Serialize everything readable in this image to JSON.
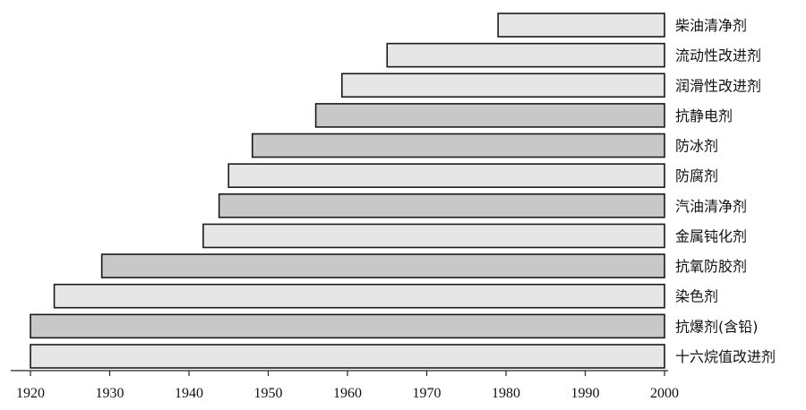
{
  "chart_data": {
    "type": "bar",
    "orientation": "horizontal",
    "title": "",
    "xlabel": "",
    "ylabel": "",
    "xlim": [
      1920,
      2000
    ],
    "xticks": [
      1920,
      1930,
      1940,
      1950,
      1960,
      1970,
      1980,
      1990,
      2000
    ],
    "grid": false,
    "legend": "none",
    "colors": {
      "dark": "#c8c8c8",
      "light": "#e6e6e6",
      "edge": "#1a1a1a"
    },
    "bars": [
      {
        "label": "柴油清净剂",
        "start": 1979,
        "end": 2000,
        "shade": "light"
      },
      {
        "label": "流动性改进剂",
        "start": 1965,
        "end": 2000,
        "shade": "light"
      },
      {
        "label": "润滑性改进剂",
        "start": 1959.3,
        "end": 2000,
        "shade": "light"
      },
      {
        "label": "抗静电剂",
        "start": 1956,
        "end": 2000,
        "shade": "dark"
      },
      {
        "label": "防冰剂",
        "start": 1948,
        "end": 2000,
        "shade": "dark"
      },
      {
        "label": "防腐剂",
        "start": 1945,
        "end": 2000,
        "shade": "light"
      },
      {
        "label": "汽油清净剂",
        "start": 1943.8,
        "end": 2000,
        "shade": "dark"
      },
      {
        "label": "金属钝化剂",
        "start": 1941.8,
        "end": 2000,
        "shade": "light"
      },
      {
        "label": "抗氧防胶剂",
        "start": 1929,
        "end": 2000,
        "shade": "dark"
      },
      {
        "label": "染色剂",
        "start": 1923,
        "end": 2000,
        "shade": "light"
      },
      {
        "label": "抗爆剂(含铅)",
        "start": 1920,
        "end": 2000,
        "shade": "dark"
      },
      {
        "label": "十六烷值改进剂",
        "start": 1920,
        "end": 2000,
        "shade": "light"
      }
    ]
  }
}
